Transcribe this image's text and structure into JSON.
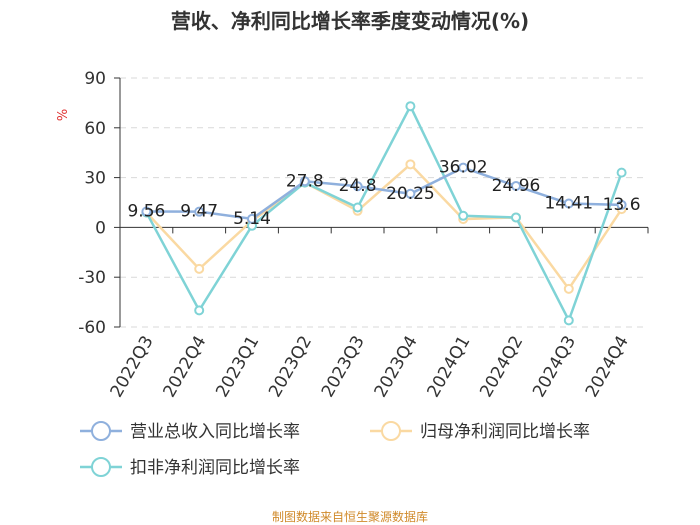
{
  "colors": {
    "revenue": "#8fb0dd",
    "net_profit": "#fad9a2",
    "deducted_profit": "#7fd3d6",
    "unit": "#e03030",
    "source": "#d08a2a",
    "grid": "#d9d9d9",
    "axis": "#333333"
  },
  "chart_data": {
    "type": "line",
    "title": "营收、净利同比增长率季度变动情况(%)",
    "ylabel": "%",
    "ylim": [
      -60,
      90
    ],
    "yticks": [
      -60,
      -30,
      0,
      30,
      60,
      90
    ],
    "categories": [
      "2022Q3",
      "2022Q4",
      "2023Q1",
      "2023Q2",
      "2023Q3",
      "2023Q4",
      "2024Q1",
      "2024Q2",
      "2024Q3",
      "2024Q4"
    ],
    "series": [
      {
        "name": "营业总收入同比增长率",
        "key": "revenue",
        "values": [
          9.56,
          9.47,
          5.14,
          27.8,
          24.8,
          20.25,
          36.02,
          24.96,
          14.41,
          13.6
        ],
        "labels": [
          "9.56",
          "9.47",
          "5.14",
          "27.8",
          "24.8",
          "20.25",
          "36.02",
          "24.96",
          "14.41",
          "13.6"
        ]
      },
      {
        "name": "归母净利润同比增长率",
        "key": "net_profit",
        "values": [
          9,
          -25,
          4,
          27,
          10,
          38,
          5,
          6,
          -37,
          11
        ]
      },
      {
        "name": "扣非净利润同比增长率",
        "key": "deducted_profit",
        "values": [
          9,
          -50,
          1,
          27,
          12,
          73,
          7,
          6,
          -56,
          33
        ]
      }
    ],
    "legend": [
      "营业总收入同比增长率",
      "归母净利润同比增长率",
      "扣非净利润同比增长率"
    ],
    "grid": true,
    "legend_position": "bottom"
  },
  "source": "制图数据来自恒生聚源数据库"
}
